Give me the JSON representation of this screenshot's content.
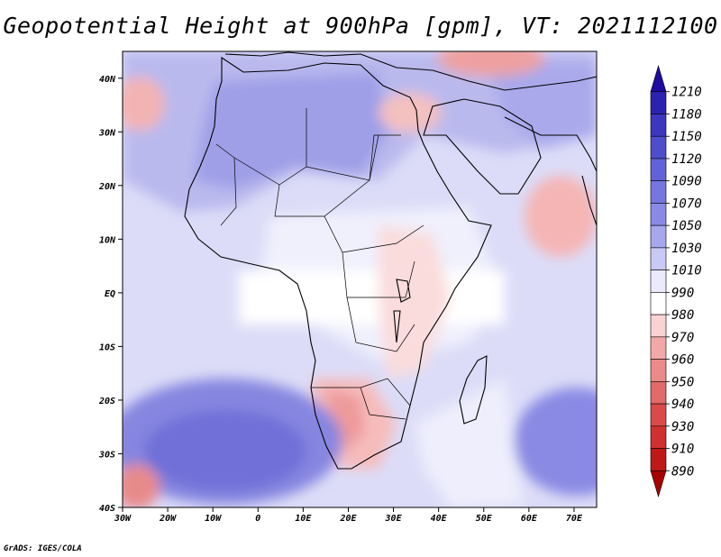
{
  "title": "Geopotential Height at 900hPa [gpm], VT: 2021112100",
  "credit": "GrADS: IGES/COLA",
  "map": {
    "lon_range": [
      -30,
      75
    ],
    "lat_range": [
      -40,
      45
    ],
    "lat_ticks": [
      {
        "lat": 40,
        "label": "40N"
      },
      {
        "lat": 30,
        "label": "30N"
      },
      {
        "lat": 20,
        "label": "20N"
      },
      {
        "lat": 10,
        "label": "10N"
      },
      {
        "lat": 0,
        "label": "EQ"
      },
      {
        "lat": -10,
        "label": "10S"
      },
      {
        "lat": -20,
        "label": "20S"
      },
      {
        "lat": -30,
        "label": "30S"
      },
      {
        "lat": -40,
        "label": "40S"
      }
    ],
    "lon_ticks": [
      {
        "lon": -30,
        "label": "30W"
      },
      {
        "lon": -20,
        "label": "20W"
      },
      {
        "lon": -10,
        "label": "10W"
      },
      {
        "lon": 0,
        "label": "0"
      },
      {
        "lon": 10,
        "label": "10E"
      },
      {
        "lon": 20,
        "label": "20E"
      },
      {
        "lon": 30,
        "label": "30E"
      },
      {
        "lon": 40,
        "label": "40E"
      },
      {
        "lon": 50,
        "label": "50E"
      },
      {
        "lon": 60,
        "label": "60E"
      },
      {
        "lon": 70,
        "label": "70E"
      }
    ]
  },
  "colorbar": {
    "labels": [
      "1210",
      "1180",
      "1150",
      "1120",
      "1090",
      "1070",
      "1050",
      "1030",
      "1010",
      "990",
      "980",
      "970",
      "960",
      "950",
      "940",
      "930",
      "910",
      "890"
    ],
    "colors": [
      "#1e0ca0",
      "#2c22b0",
      "#3d37c0",
      "#4e4dcc",
      "#6262d8",
      "#7676e0",
      "#8a8ae6",
      "#a7a7ee",
      "#c9c9f6",
      "#eaeafc",
      "#ffffff",
      "#fad2d2",
      "#f2a8a8",
      "#ea8a8a",
      "#e26a6a",
      "#da4a4a",
      "#d03030",
      "#c01818",
      "#a80000"
    ]
  }
}
